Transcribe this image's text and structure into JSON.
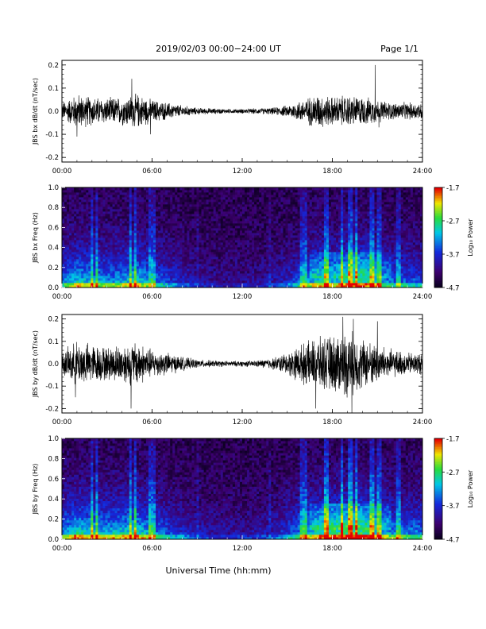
{
  "header": {
    "title": "2019/02/03  00:00−24:00 UT",
    "page": "Page 1/1"
  },
  "footer": {
    "xlabel": "Universal Time (hh:mm)"
  },
  "chart_data": [
    {
      "type": "line",
      "ylabel": "JBS bx dB/dt (nT/sec)",
      "xlim": [
        0,
        24
      ],
      "ylim": [
        -0.22,
        0.22
      ],
      "xticks": [
        "00:00",
        "06:00",
        "12:00",
        "18:00",
        "24:00"
      ],
      "yticks": [
        "-0.2",
        "-0.1",
        "0.0",
        "0.1",
        "0.2"
      ],
      "series_color": "#000000",
      "activity_envelope": [
        [
          0,
          0.03
        ],
        [
          1,
          0.06
        ],
        [
          2,
          0.05
        ],
        [
          3,
          0.045
        ],
        [
          4,
          0.05
        ],
        [
          5,
          0.06
        ],
        [
          6,
          0.04
        ],
        [
          7,
          0.03
        ],
        [
          8,
          0.02
        ],
        [
          9,
          0.012
        ],
        [
          10,
          0.01
        ],
        [
          11,
          0.008
        ],
        [
          12,
          0.008
        ],
        [
          13,
          0.01
        ],
        [
          14,
          0.012
        ],
        [
          15,
          0.02
        ],
        [
          16,
          0.04
        ],
        [
          17,
          0.06
        ],
        [
          18,
          0.05
        ],
        [
          19,
          0.055
        ],
        [
          20,
          0.05
        ],
        [
          21,
          0.04
        ],
        [
          22,
          0.03
        ],
        [
          23,
          0.03
        ],
        [
          24,
          0.03
        ]
      ],
      "spikes": [
        [
          4.65,
          0.14
        ],
        [
          20.85,
          0.2
        ],
        [
          5.9,
          -0.1
        ],
        [
          1.0,
          -0.11
        ],
        [
          21.1,
          -0.07
        ]
      ]
    },
    {
      "type": "heatmap",
      "ylabel": "JBS bx Freq (Hz)",
      "xlim": [
        0,
        24
      ],
      "ylim": [
        0,
        1.0
      ],
      "xticks": [
        "00:00",
        "06:00",
        "12:00",
        "18:00",
        "24:00"
      ],
      "yticks": [
        "0.0",
        "0.2",
        "0.4",
        "0.6",
        "0.8",
        "1.0"
      ],
      "colorbar": {
        "label": "Log₁₀ Power",
        "ticks": [
          "-1.7",
          "-2.7",
          "-3.7",
          "-4.7"
        ],
        "range": [
          -4.7,
          -1.7
        ]
      },
      "activity_envelope": [
        [
          0,
          0.55
        ],
        [
          1,
          0.8
        ],
        [
          2,
          0.7
        ],
        [
          3,
          0.65
        ],
        [
          4,
          0.7
        ],
        [
          5,
          0.8
        ],
        [
          6,
          0.6
        ],
        [
          7,
          0.45
        ],
        [
          8,
          0.35
        ],
        [
          9,
          0.25
        ],
        [
          10,
          0.2
        ],
        [
          11,
          0.18
        ],
        [
          12,
          0.18
        ],
        [
          13,
          0.2
        ],
        [
          14,
          0.25
        ],
        [
          15,
          0.35
        ],
        [
          16,
          0.55
        ],
        [
          17,
          0.8
        ],
        [
          18,
          0.75
        ],
        [
          19,
          0.85
        ],
        [
          20,
          0.9
        ],
        [
          21,
          0.7
        ],
        [
          22,
          0.55
        ],
        [
          23,
          0.5
        ],
        [
          24,
          0.5
        ]
      ]
    },
    {
      "type": "line",
      "ylabel": "JBS by dB/dt (nT/sec)",
      "xlim": [
        0,
        24
      ],
      "ylim": [
        -0.22,
        0.22
      ],
      "xticks": [
        "00:00",
        "06:00",
        "12:00",
        "18:00",
        "24:00"
      ],
      "yticks": [
        "-0.2",
        "-0.1",
        "0.0",
        "0.1",
        "0.2"
      ],
      "series_color": "#000000",
      "activity_envelope": [
        [
          0,
          0.04
        ],
        [
          1,
          0.08
        ],
        [
          2,
          0.07
        ],
        [
          3,
          0.06
        ],
        [
          4,
          0.07
        ],
        [
          5,
          0.08
        ],
        [
          6,
          0.05
        ],
        [
          7,
          0.04
        ],
        [
          8,
          0.025
        ],
        [
          9,
          0.015
        ],
        [
          10,
          0.012
        ],
        [
          11,
          0.01
        ],
        [
          12,
          0.01
        ],
        [
          13,
          0.012
        ],
        [
          14,
          0.02
        ],
        [
          15,
          0.04
        ],
        [
          16,
          0.07
        ],
        [
          17,
          0.09
        ],
        [
          18,
          0.1
        ],
        [
          19,
          0.12
        ],
        [
          20,
          0.09
        ],
        [
          21,
          0.07
        ],
        [
          22,
          0.05
        ],
        [
          23,
          0.04
        ],
        [
          24,
          0.04
        ]
      ],
      "spikes": [
        [
          0.9,
          -0.15
        ],
        [
          4.6,
          -0.2
        ],
        [
          16.9,
          -0.2
        ],
        [
          18.7,
          0.21
        ],
        [
          19.3,
          -0.22
        ],
        [
          19.4,
          0.2
        ],
        [
          21.0,
          0.19
        ]
      ]
    },
    {
      "type": "heatmap",
      "ylabel": "JBS by Freq (Hz)",
      "xlim": [
        0,
        24
      ],
      "ylim": [
        0,
        1.0
      ],
      "xticks": [
        "00:00",
        "06:00",
        "12:00",
        "18:00",
        "24:00"
      ],
      "yticks": [
        "0.0",
        "0.2",
        "0.4",
        "0.6",
        "0.8",
        "1.0"
      ],
      "colorbar": {
        "label": "Log₁₀ Power",
        "ticks": [
          "-1.7",
          "-2.7",
          "-3.7",
          "-4.7"
        ],
        "range": [
          -4.7,
          -1.7
        ]
      },
      "activity_envelope": [
        [
          0,
          0.65
        ],
        [
          1,
          0.85
        ],
        [
          2,
          0.8
        ],
        [
          3,
          0.75
        ],
        [
          4,
          0.8
        ],
        [
          5,
          0.85
        ],
        [
          6,
          0.65
        ],
        [
          7,
          0.5
        ],
        [
          8,
          0.4
        ],
        [
          9,
          0.3
        ],
        [
          10,
          0.25
        ],
        [
          11,
          0.22
        ],
        [
          12,
          0.22
        ],
        [
          13,
          0.25
        ],
        [
          14,
          0.3
        ],
        [
          15,
          0.45
        ],
        [
          16,
          0.65
        ],
        [
          17,
          0.85
        ],
        [
          18,
          0.9
        ],
        [
          19,
          0.95
        ],
        [
          20,
          0.95
        ],
        [
          21,
          0.8
        ],
        [
          22,
          0.65
        ],
        [
          23,
          0.6
        ],
        [
          24,
          0.6
        ]
      ]
    }
  ]
}
